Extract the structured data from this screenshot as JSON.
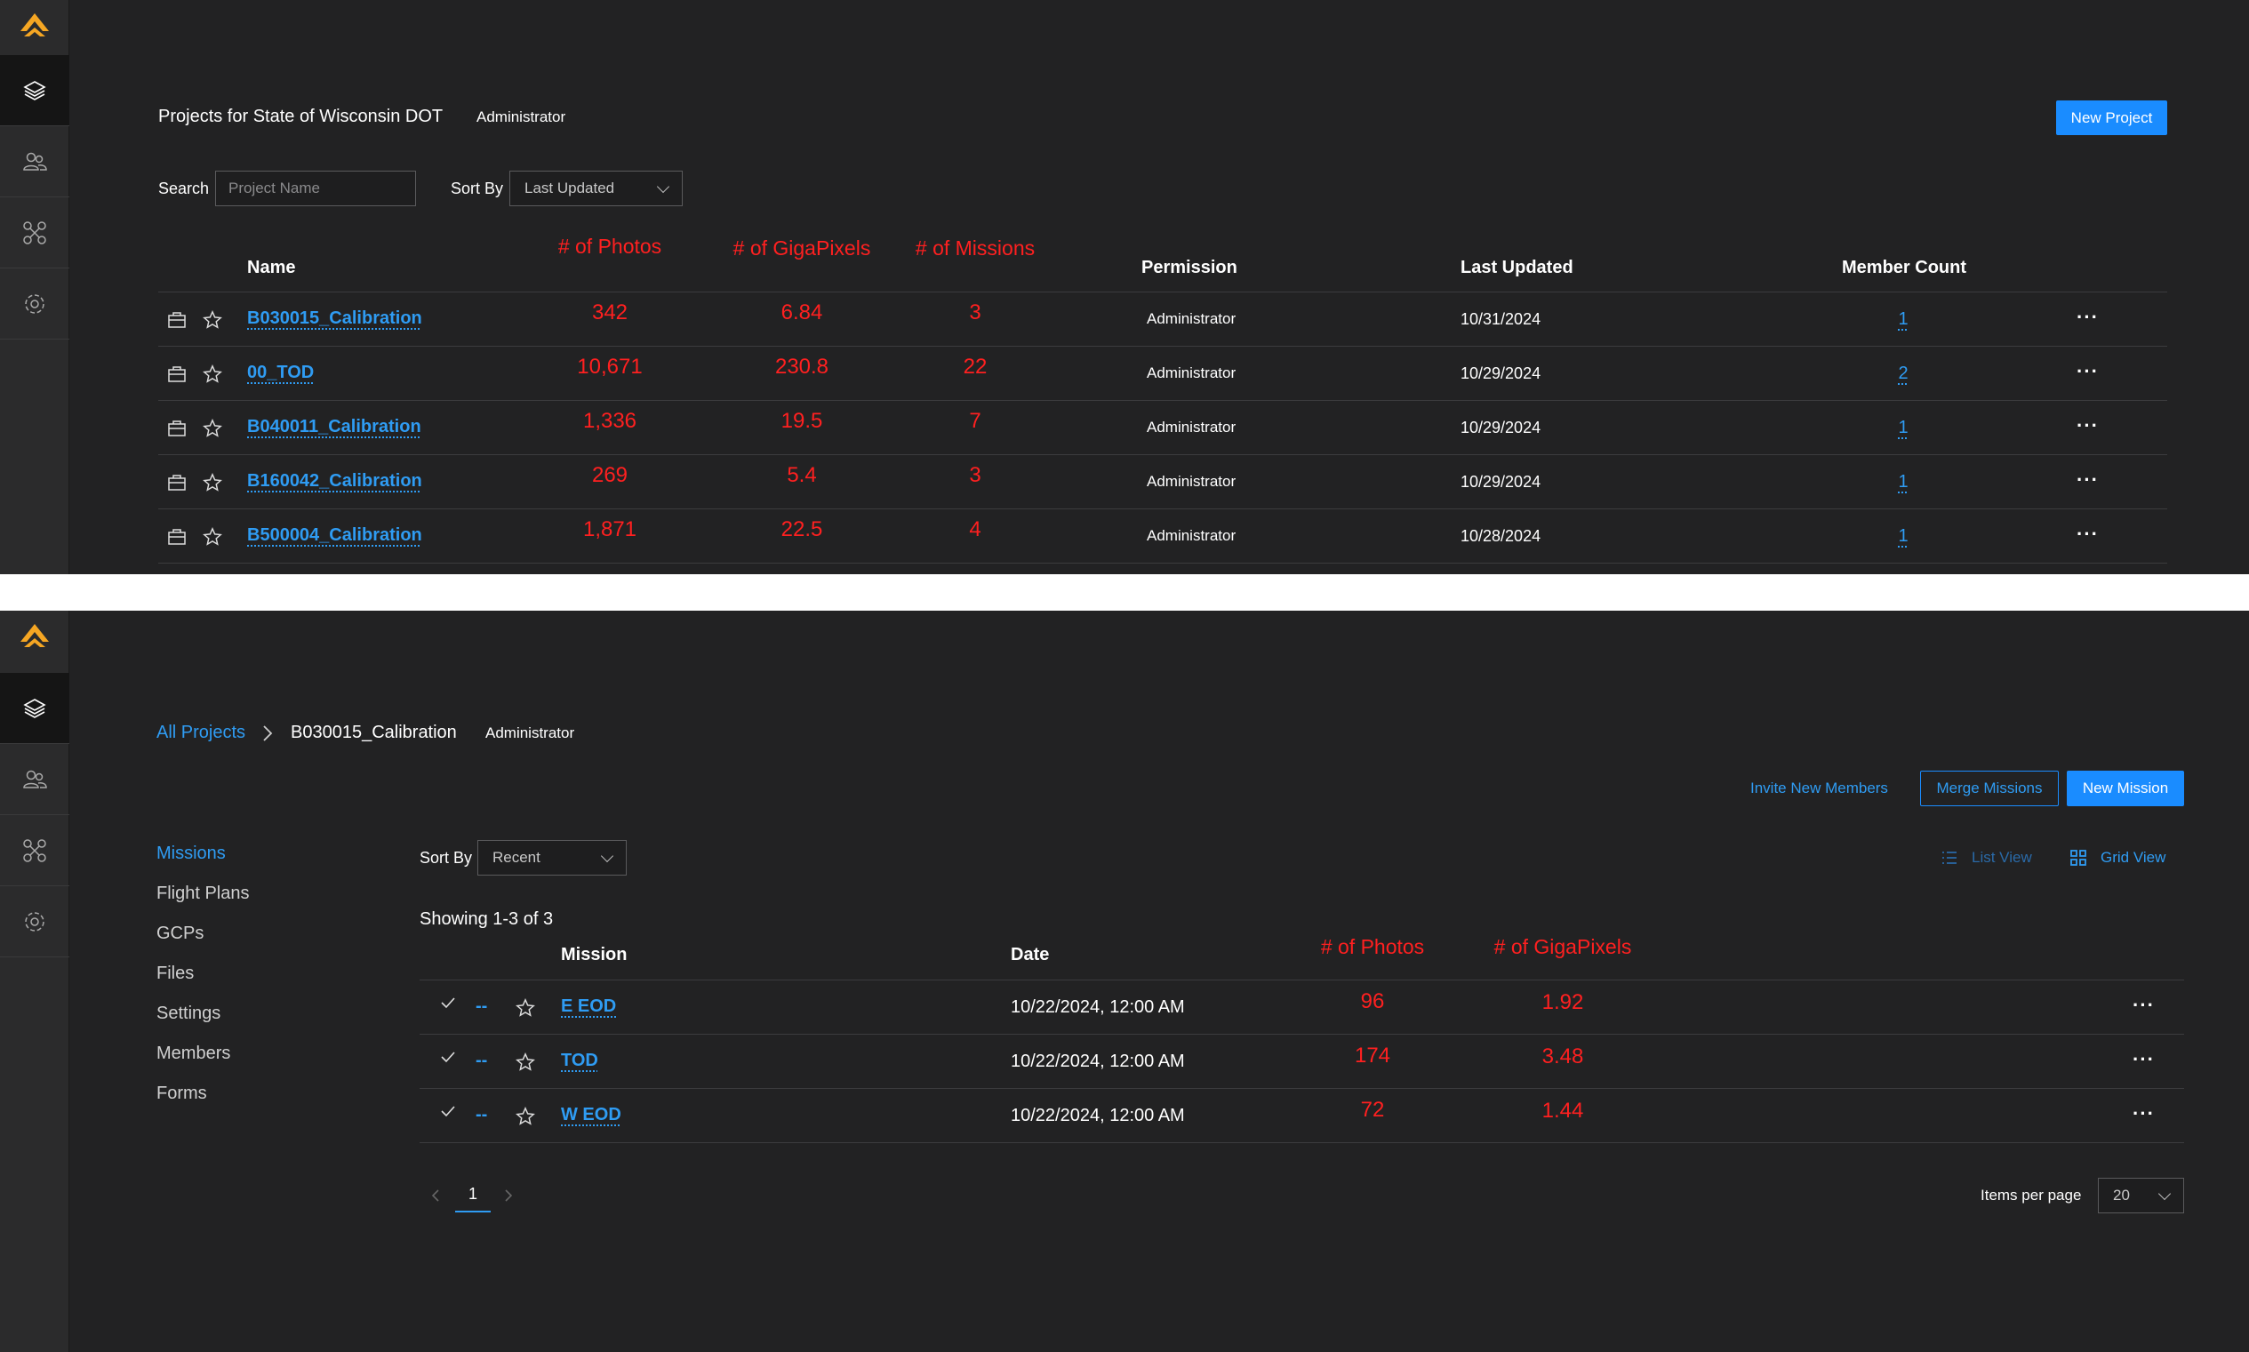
{
  "top": {
    "sidebar": [
      "layers-icon",
      "users-icon",
      "drone-icon",
      "settings-icon"
    ],
    "title": "Projects for State of Wisconsin DOT",
    "role": "Administrator",
    "new_project_label": "New Project",
    "search_label": "Search",
    "search_placeholder": "Project Name",
    "sort_label": "Sort By",
    "sort_value": "Last Updated",
    "columns": {
      "name": "Name",
      "photos": "# of Photos",
      "gigapixels": "# of GigaPixels",
      "missions": "# of Missions",
      "permission": "Permission",
      "last_updated": "Last Updated",
      "member_count": "Member Count"
    },
    "rows": [
      {
        "name": "B030015_Calibration",
        "photos": "342",
        "gigapixels": "6.84",
        "missions": "3",
        "permission": "Administrator",
        "last_updated": "10/31/2024",
        "member_count": "1"
      },
      {
        "name": "00_TOD",
        "photos": "10,671",
        "gigapixels": "230.8",
        "missions": "22",
        "permission": "Administrator",
        "last_updated": "10/29/2024",
        "member_count": "2"
      },
      {
        "name": "B040011_Calibration",
        "photos": "1,336",
        "gigapixels": "19.5",
        "missions": "7",
        "permission": "Administrator",
        "last_updated": "10/29/2024",
        "member_count": "1"
      },
      {
        "name": "B160042_Calibration",
        "photos": "269",
        "gigapixels": "5.4",
        "missions": "3",
        "permission": "Administrator",
        "last_updated": "10/29/2024",
        "member_count": "1"
      },
      {
        "name": "B500004_Calibration",
        "photos": "1,871",
        "gigapixels": "22.5",
        "missions": "4",
        "permission": "Administrator",
        "last_updated": "10/28/2024",
        "member_count": "1"
      }
    ]
  },
  "bottom": {
    "breadcrumb_root": "All Projects",
    "breadcrumb_current": "B030015_Calibration",
    "role": "Administrator",
    "invite_label": "Invite New Members",
    "merge_label": "Merge Missions",
    "new_mission_label": "New Mission",
    "nav": [
      "Missions",
      "Flight Plans",
      "GCPs",
      "Files",
      "Settings",
      "Members",
      "Forms"
    ],
    "nav_active": "Missions",
    "sort_label": "Sort By",
    "sort_value": "Recent",
    "list_view_label": "List View",
    "grid_view_label": "Grid View",
    "showing": "Showing 1-3 of 3",
    "columns": {
      "mission": "Mission",
      "date": "Date",
      "photos": "# of Photos",
      "gigapixels": "# of GigaPixels"
    },
    "rows": [
      {
        "status": "--",
        "mission": "E EOD",
        "date": "10/22/2024, 12:00 AM",
        "photos": "96",
        "gigapixels": "1.92"
      },
      {
        "status": "--",
        "mission": "TOD",
        "date": "10/22/2024, 12:00 AM",
        "photos": "174",
        "gigapixels": "3.48"
      },
      {
        "status": "--",
        "mission": "W EOD",
        "date": "10/22/2024, 12:00 AM",
        "photos": "72",
        "gigapixels": "1.44"
      }
    ],
    "page": "1",
    "items_per_page_label": "Items per page",
    "items_per_page": "20"
  },
  "colors": {
    "background": "#222223",
    "sidebar": "#2b2b2c",
    "accent": "#1a8cff",
    "annotation": "#ff2020",
    "logo": "#f5a623"
  }
}
